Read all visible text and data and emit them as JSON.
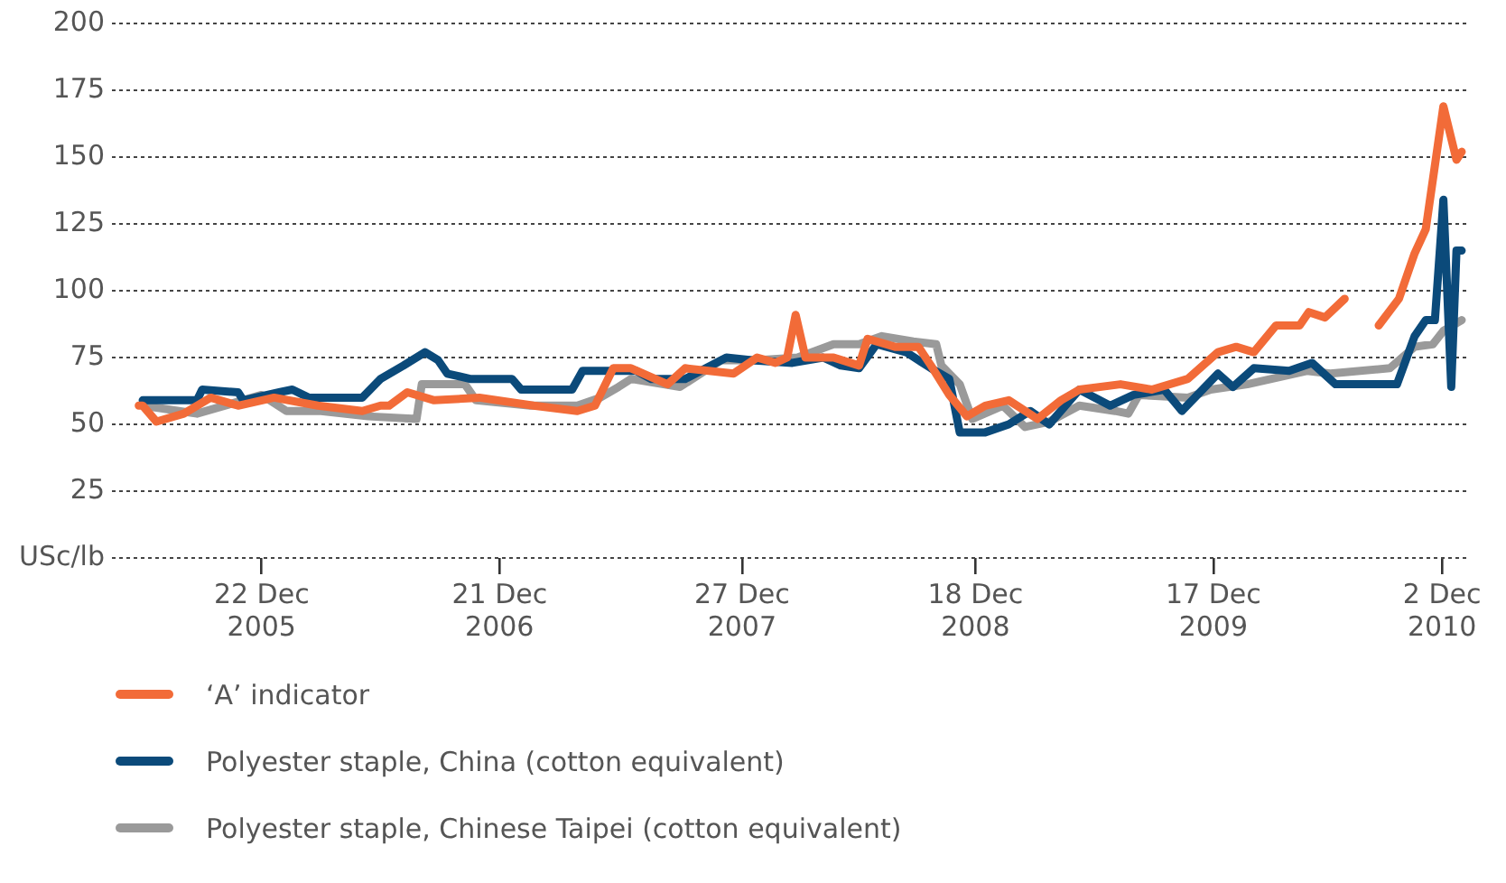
{
  "chart_data": {
    "type": "line",
    "ylim": [
      0,
      200
    ],
    "yticks": [
      {
        "value": 0,
        "label": "USc/lb"
      },
      25,
      50,
      75,
      100,
      125,
      150,
      175,
      200
    ],
    "xlim": [
      "2005-05-07",
      "2011-01-08"
    ],
    "xticks": [
      {
        "value": "2005-12-22",
        "label": "22 Dec 2005"
      },
      {
        "value": "2006-12-21",
        "label": "21 Dec 2006"
      },
      {
        "value": "2007-12-27",
        "label": "27 Dec 2007"
      },
      {
        "value": "2008-12-18",
        "label": "18 Dec 2008"
      },
      {
        "value": "2009-12-17",
        "label": "17 Dec 2009"
      },
      {
        "value": "2010-12-02",
        "label": "2 Dec 2010"
      }
    ],
    "grid": "y",
    "legend": "bottom",
    "marker": "none",
    "line_style": "solid",
    "series": [
      {
        "name": "‘A’ indicator",
        "color": "#f26b38",
        "x": [
          "2005-06-17",
          "2005-06-23",
          "2005-07-14",
          "2005-08-25",
          "2005-10-05",
          "2005-11-16",
          "2006-01-10",
          "2006-03-18",
          "2006-05-25",
          "2006-06-22",
          "2006-07-05",
          "2006-08-02",
          "2006-09-12",
          "2006-11-20",
          "2007-02-11",
          "2007-04-19",
          "2007-05-16",
          "2007-06-13",
          "2007-07-10",
          "2007-09-04",
          "2007-10-01",
          "2007-12-14",
          "2008-01-19",
          "2008-02-16",
          "2008-03-05",
          "2008-03-18",
          "2008-04-02",
          "2008-05-15",
          "2008-06-23",
          "2008-07-06",
          "2008-08-17",
          "2008-09-22",
          "2008-10-11",
          "2008-11-08",
          "2008-12-05",
          "2009-01-02",
          "2009-02-07",
          "2009-03-23",
          "2009-04-28",
          "2009-05-26",
          "2009-07-28",
          "2009-09-14",
          "2009-11-08",
          "2009-12-24",
          "2010-01-21",
          "2010-02-17",
          "2010-03-23",
          "2010-04-28",
          "2010-05-12",
          "2010-06-06",
          "2010-07-06",
          "2010-07-20",
          "2010-08-27",
          "2010-09-27",
          "2010-10-21",
          "2010-11-07",
          "2010-12-04",
          "2010-12-24",
          "2011-01-01"
        ],
        "values": [
          57,
          57,
          51,
          54,
          60,
          57,
          60,
          57,
          55,
          57,
          57,
          62,
          59,
          60,
          57,
          55,
          57,
          71,
          71,
          65,
          71,
          69,
          75,
          73,
          75,
          91,
          75,
          75,
          72,
          82,
          79,
          79,
          72,
          61,
          53,
          57,
          59,
          52,
          59,
          63,
          65,
          63,
          67,
          77,
          79,
          77,
          87,
          87,
          92,
          90,
          97,
          null,
          87,
          97,
          114,
          123,
          169,
          149,
          152
        ]
      },
      {
        "name": "Polyester staple, China (cotton equivalent)",
        "color": "#0b4a7a",
        "x": [
          "2005-06-23",
          "2005-09-14",
          "2005-09-22",
          "2005-11-16",
          "2005-11-24",
          "2006-01-18",
          "2006-02-07",
          "2006-03-04",
          "2006-05-25",
          "2006-06-22",
          "2006-07-27",
          "2006-08-29",
          "2006-09-18",
          "2006-10-02",
          "2006-11-06",
          "2006-11-26",
          "2007-01-09",
          "2007-01-23",
          "2007-04-11",
          "2007-04-27",
          "2007-06-13",
          "2007-07-18",
          "2007-08-10",
          "2007-10-01",
          "2007-12-03",
          "2008-01-11",
          "2008-03-13",
          "2008-04-29",
          "2008-05-26",
          "2008-06-23",
          "2008-07-20",
          "2008-09-03",
          "2008-10-11",
          "2008-11-08",
          "2008-11-24",
          "2009-01-02",
          "2009-02-07",
          "2009-03-12",
          "2009-04-10",
          "2009-05-26",
          "2009-07-12",
          "2009-08-17",
          "2009-10-03",
          "2009-10-30",
          "2009-12-24",
          "2010-01-16",
          "2010-02-17",
          "2010-04-12",
          "2010-05-17",
          "2010-06-22",
          "2010-08-08",
          "2010-09-24",
          "2010-10-21",
          "2010-11-07",
          "2010-11-21",
          "2010-12-04",
          "2010-12-16",
          "2010-12-24",
          "2011-01-01"
        ],
        "values": [
          59,
          59,
          63,
          62,
          59,
          62,
          63,
          60,
          60,
          67,
          72,
          77,
          74,
          69,
          67,
          67,
          67,
          63,
          63,
          70,
          70,
          70,
          67,
          67,
          75,
          74,
          73,
          75,
          72,
          71,
          80,
          77,
          71,
          67,
          47,
          47,
          50,
          55,
          50,
          63,
          57,
          61,
          63,
          55,
          69,
          64,
          71,
          70,
          73,
          65,
          65,
          65,
          83,
          89,
          89,
          134,
          64,
          115,
          115
        ]
      },
      {
        "name": "Polyester staple, Chinese Taipei (cotton equivalent)",
        "color": "#9a9a9a",
        "x": [
          "2005-06-23",
          "2005-09-14",
          "2005-12-22",
          "2006-01-29",
          "2006-03-23",
          "2006-06-03",
          "2006-08-16",
          "2006-08-24",
          "2006-10-29",
          "2006-11-15",
          "2007-02-06",
          "2007-04-19",
          "2007-05-24",
          "2007-06-21",
          "2007-07-10",
          "2007-09-23",
          "2007-11-25",
          "2008-01-19",
          "2008-03-21",
          "2008-05-15",
          "2008-06-23",
          "2008-07-28",
          "2008-09-14",
          "2008-10-19",
          "2008-10-27",
          "2008-11-24",
          "2008-12-13",
          "2009-01-29",
          "2009-03-04",
          "2009-04-10",
          "2009-05-26",
          "2009-07-20",
          "2009-08-09",
          "2009-08-25",
          "2009-11-08",
          "2009-12-13",
          "2010-02-07",
          "2010-05-09",
          "2010-06-14",
          "2010-09-13",
          "2010-10-21",
          "2010-11-18",
          "2010-12-04",
          "2011-01-01"
        ],
        "values": [
          57,
          54,
          61,
          55,
          55,
          53,
          52,
          65,
          65,
          59,
          57,
          57,
          60,
          64,
          67,
          64,
          74,
          74,
          75,
          80,
          80,
          83,
          81,
          80,
          72,
          65,
          52,
          57,
          49,
          51,
          57,
          55,
          54,
          61,
          60,
          63,
          65,
          70,
          69,
          71,
          79,
          80,
          85,
          89
        ]
      }
    ]
  }
}
